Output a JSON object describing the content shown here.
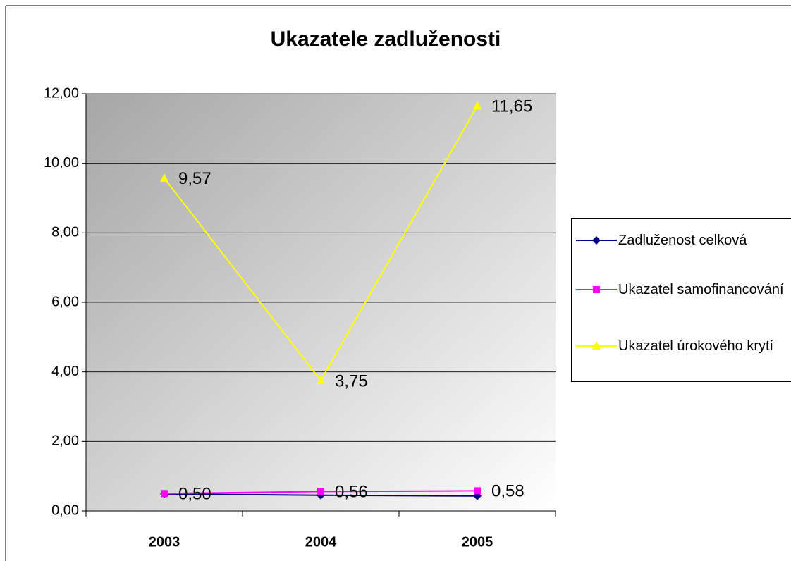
{
  "chart_data": {
    "type": "line",
    "title": "Ukazatele zadluženosti",
    "categories": [
      "2003",
      "2004",
      "2005"
    ],
    "series": [
      {
        "name": "Zadluženost celková",
        "color": "#000080",
        "marker": "diamond",
        "values": [
          0.49,
          0.45,
          0.43
        ]
      },
      {
        "name": "Ukazatel samofinancování",
        "color": "#ff00ff",
        "marker": "square",
        "values": [
          0.5,
          0.56,
          0.58
        ],
        "value_labels": [
          "0,50",
          "0,56",
          "0,58"
        ]
      },
      {
        "name": "Ukazatel úrokového krytí",
        "color": "#ffff00",
        "marker": "triangle",
        "values": [
          9.57,
          3.75,
          11.65
        ],
        "value_labels": [
          "9,57",
          "3,75",
          "11,65"
        ]
      }
    ],
    "ylim": [
      0,
      12
    ],
    "yticks": [
      {
        "value": 0,
        "label": "0,00"
      },
      {
        "value": 2,
        "label": "2,00"
      },
      {
        "value": 4,
        "label": "4,00"
      },
      {
        "value": 6,
        "label": "6,00"
      },
      {
        "value": 8,
        "label": "8,00"
      },
      {
        "value": 10,
        "label": "10,00"
      },
      {
        "value": 12,
        "label": "12,00"
      }
    ],
    "grid": true,
    "legend": "right"
  }
}
